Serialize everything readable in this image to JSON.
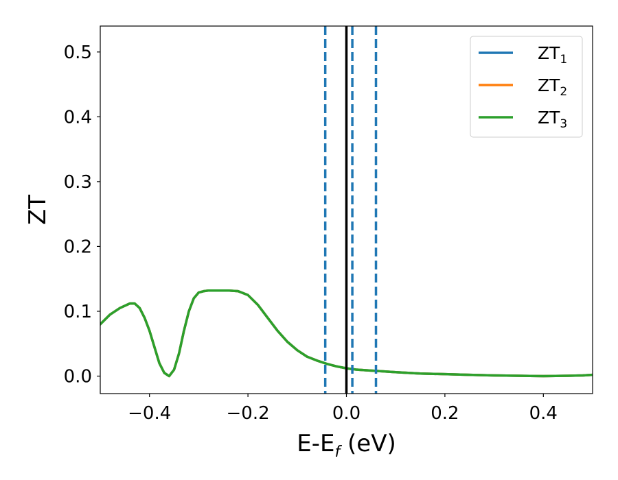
{
  "chart_data": {
    "type": "line",
    "xlabel": "E-E",
    "xlabel_sub": "f",
    "xlabel_unit": " (eV)",
    "ylabel": "ZT",
    "xlim": [
      -0.5,
      0.5
    ],
    "ylim": [
      -0.027,
      0.54
    ],
    "x_ticks": [
      -0.4,
      -0.2,
      0.0,
      0.2,
      0.4
    ],
    "x_tick_labels": [
      "−0.4",
      "−0.2",
      "0.0",
      "0.2",
      "0.4"
    ],
    "y_ticks": [
      0.0,
      0.1,
      0.2,
      0.3,
      0.4,
      0.5
    ],
    "y_tick_labels": [
      "0.0",
      "0.1",
      "0.2",
      "0.3",
      "0.4",
      "0.5"
    ],
    "grid": false,
    "legend_position": "top-right",
    "series": [
      {
        "name": "ZT",
        "sub": "1",
        "color": "#1f77b4",
        "x": [
          -0.5,
          -0.48,
          -0.46,
          -0.44,
          -0.43,
          -0.42,
          -0.41,
          -0.4,
          -0.39,
          -0.38,
          -0.37,
          -0.36,
          -0.35,
          -0.34,
          -0.33,
          -0.32,
          -0.31,
          -0.3,
          -0.29,
          -0.28,
          -0.26,
          -0.24,
          -0.22,
          -0.2,
          -0.18,
          -0.16,
          -0.14,
          -0.12,
          -0.1,
          -0.08,
          -0.06,
          -0.04,
          -0.02,
          0.0,
          0.02,
          0.04,
          0.06,
          0.1,
          0.15,
          0.2,
          0.25,
          0.3,
          0.35,
          0.4,
          0.45,
          0.48,
          0.5
        ],
        "y": [
          0.08,
          0.095,
          0.105,
          0.112,
          0.112,
          0.105,
          0.09,
          0.07,
          0.045,
          0.02,
          0.005,
          0.0,
          0.01,
          0.035,
          0.07,
          0.1,
          0.12,
          0.129,
          0.131,
          0.132,
          0.132,
          0.132,
          0.131,
          0.125,
          0.11,
          0.09,
          0.07,
          0.053,
          0.04,
          0.03,
          0.024,
          0.019,
          0.015,
          0.012,
          0.01,
          0.009,
          0.008,
          0.006,
          0.004,
          0.003,
          0.002,
          0.001,
          0.0005,
          0.0,
          0.0005,
          0.001,
          0.002
        ]
      },
      {
        "name": "ZT",
        "sub": "2",
        "color": "#ff7f0e",
        "x": [
          -0.5,
          -0.48,
          -0.46,
          -0.44,
          -0.43,
          -0.42,
          -0.41,
          -0.4,
          -0.39,
          -0.38,
          -0.37,
          -0.36,
          -0.35,
          -0.34,
          -0.33,
          -0.32,
          -0.31,
          -0.3,
          -0.29,
          -0.28,
          -0.26,
          -0.24,
          -0.22,
          -0.2,
          -0.18,
          -0.16,
          -0.14,
          -0.12,
          -0.1,
          -0.08,
          -0.06,
          -0.04,
          -0.02,
          0.0,
          0.02,
          0.04,
          0.06,
          0.1,
          0.15,
          0.2,
          0.25,
          0.3,
          0.35,
          0.4,
          0.45,
          0.48,
          0.5
        ],
        "y": [
          0.08,
          0.095,
          0.105,
          0.112,
          0.112,
          0.105,
          0.09,
          0.07,
          0.045,
          0.02,
          0.005,
          0.0,
          0.01,
          0.035,
          0.07,
          0.1,
          0.12,
          0.129,
          0.131,
          0.132,
          0.132,
          0.132,
          0.131,
          0.125,
          0.11,
          0.09,
          0.07,
          0.053,
          0.04,
          0.03,
          0.024,
          0.019,
          0.015,
          0.012,
          0.01,
          0.009,
          0.008,
          0.006,
          0.004,
          0.003,
          0.002,
          0.001,
          0.0005,
          0.0,
          0.0005,
          0.001,
          0.002
        ]
      },
      {
        "name": "ZT",
        "sub": "3",
        "color": "#2ca02c",
        "x": [
          -0.5,
          -0.48,
          -0.46,
          -0.44,
          -0.43,
          -0.42,
          -0.41,
          -0.4,
          -0.39,
          -0.38,
          -0.37,
          -0.36,
          -0.35,
          -0.34,
          -0.33,
          -0.32,
          -0.31,
          -0.3,
          -0.29,
          -0.28,
          -0.26,
          -0.24,
          -0.22,
          -0.2,
          -0.18,
          -0.16,
          -0.14,
          -0.12,
          -0.1,
          -0.08,
          -0.06,
          -0.04,
          -0.02,
          0.0,
          0.02,
          0.04,
          0.06,
          0.1,
          0.15,
          0.2,
          0.25,
          0.3,
          0.35,
          0.4,
          0.45,
          0.48,
          0.5
        ],
        "y": [
          0.08,
          0.095,
          0.105,
          0.112,
          0.112,
          0.105,
          0.09,
          0.07,
          0.045,
          0.02,
          0.005,
          0.0,
          0.01,
          0.035,
          0.07,
          0.1,
          0.12,
          0.129,
          0.131,
          0.132,
          0.132,
          0.132,
          0.131,
          0.125,
          0.11,
          0.09,
          0.07,
          0.053,
          0.04,
          0.03,
          0.024,
          0.019,
          0.015,
          0.012,
          0.01,
          0.009,
          0.008,
          0.006,
          0.004,
          0.003,
          0.002,
          0.001,
          0.0005,
          0.0,
          0.0005,
          0.001,
          0.002
        ]
      }
    ],
    "vertical_lines": [
      {
        "x": -0.043,
        "style": "dashed",
        "color": "#1f77b4"
      },
      {
        "x": 0.012,
        "style": "dashed",
        "color": "#1f77b4"
      },
      {
        "x": 0.06,
        "style": "dashed",
        "color": "#1f77b4"
      },
      {
        "x": 0.0,
        "style": "solid",
        "color": "#000000"
      }
    ]
  }
}
